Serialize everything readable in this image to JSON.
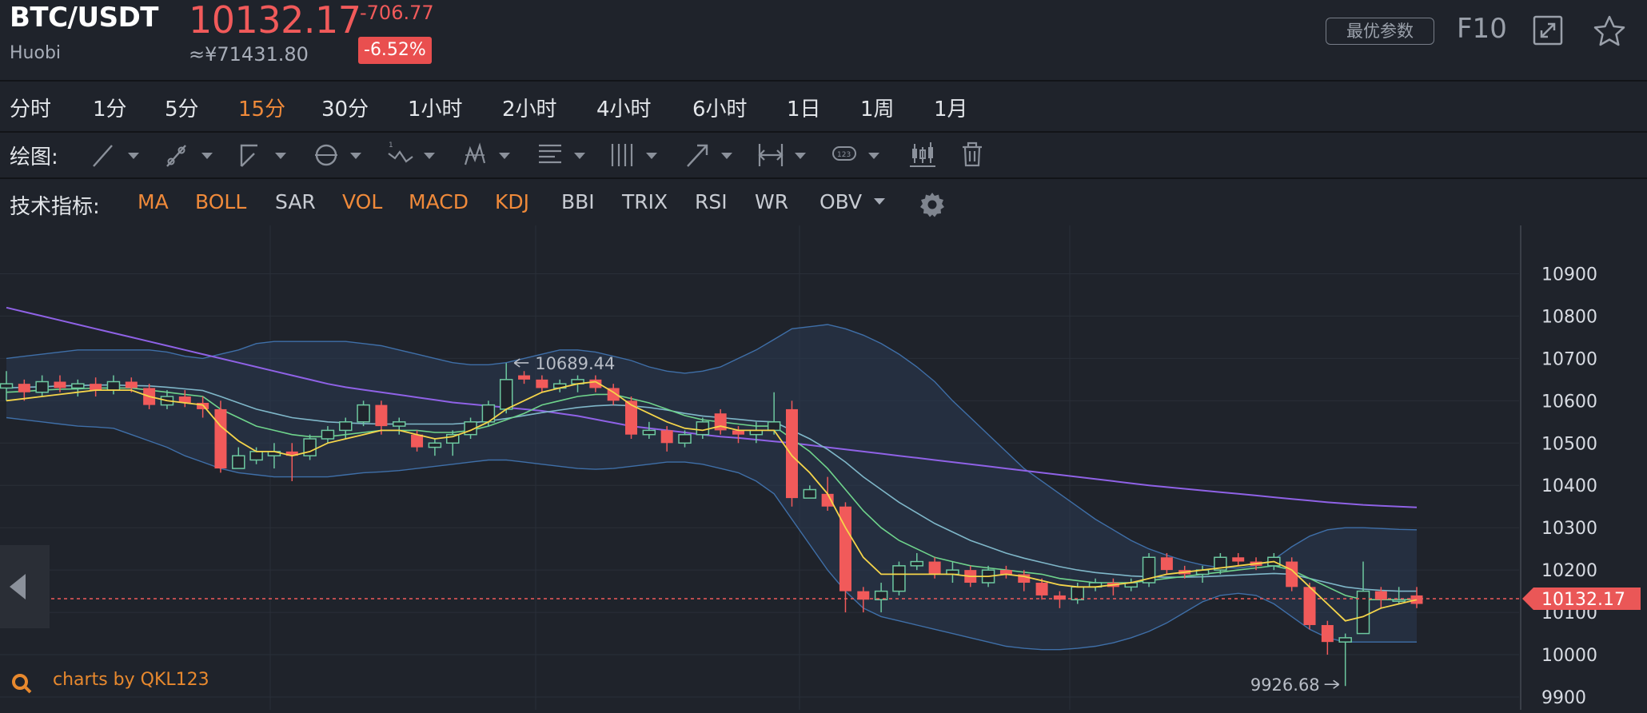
{
  "header": {
    "pair": "BTC/USDT",
    "exchange": "Huobi",
    "price": "10132.17",
    "price_cny": "≈¥71431.80",
    "change": "-706.77",
    "change_pct": "-6.52%",
    "best_params_label": "最优参数",
    "f10_label": "F10",
    "icons": [
      "expand-icon",
      "star-icon"
    ]
  },
  "timeframes": [
    {
      "label": "分时",
      "active": false
    },
    {
      "label": "1分",
      "active": false
    },
    {
      "label": "5分",
      "active": false
    },
    {
      "label": "15分",
      "active": true
    },
    {
      "label": "30分",
      "active": false
    },
    {
      "label": "1小时",
      "active": false
    },
    {
      "label": "2小时",
      "active": false
    },
    {
      "label": "4小时",
      "active": false
    },
    {
      "label": "6小时",
      "active": false
    },
    {
      "label": "1日",
      "active": false
    },
    {
      "label": "1周",
      "active": false
    },
    {
      "label": "1月",
      "active": false
    }
  ],
  "drawing": {
    "label": "绘图:",
    "tools": [
      "line-tool-icon",
      "segment-tool-icon",
      "angle-tool-icon",
      "circle-tool-icon",
      "wave-tool-icon",
      "pattern-tool-icon",
      "fibonacci-tool-icon",
      "gann-tool-icon",
      "arrow-tool-icon",
      "measure-tool-icon",
      "annotation-tool-icon",
      "candle-style-icon",
      "trash-icon"
    ]
  },
  "indicators": {
    "label": "技术指标:",
    "items": [
      {
        "label": "MA",
        "active": true
      },
      {
        "label": "BOLL",
        "active": true
      },
      {
        "label": "SAR",
        "active": false
      },
      {
        "label": "VOL",
        "active": true
      },
      {
        "label": "MACD",
        "active": true
      },
      {
        "label": "KDJ",
        "active": true
      },
      {
        "label": "BBI",
        "active": false
      },
      {
        "label": "TRIX",
        "active": false
      },
      {
        "label": "RSI",
        "active": false
      },
      {
        "label": "WR",
        "active": false
      },
      {
        "label": "OBV",
        "active": false
      }
    ],
    "settings_icon": "gear-icon"
  },
  "colors": {
    "up": "#6dc8a0",
    "down": "#f15a5a",
    "accent": "#f08a3a",
    "ma_fast": "#f5d54a",
    "ma_mid": "#6fd48c",
    "ma_slow": "#7fb7c9",
    "ma_long": "#8f62e6",
    "boll_band": "#3f6fa8"
  },
  "watermark": "charts by QKL123",
  "chart_data": {
    "type": "candlestick",
    "ylim": [
      9900,
      10950
    ],
    "yticks": [
      9900,
      10000,
      10100,
      10200,
      10300,
      10400,
      10500,
      10600,
      10700,
      10800,
      10900
    ],
    "last_price": 10132.17,
    "last_price_label": "10132.17",
    "high_label": "10689.44",
    "low_label": "9926.68",
    "grid": true,
    "candles": [
      [
        10630,
        10640,
        10670,
        10600
      ],
      [
        10640,
        10620,
        10650,
        10600
      ],
      [
        10620,
        10645,
        10660,
        10610
      ],
      [
        10645,
        10630,
        10660,
        10620
      ],
      [
        10630,
        10640,
        10650,
        10610
      ],
      [
        10640,
        10625,
        10655,
        10610
      ],
      [
        10625,
        10645,
        10660,
        10615
      ],
      [
        10645,
        10630,
        10655,
        10620
      ],
      [
        10630,
        10590,
        10640,
        10580
      ],
      [
        10590,
        10610,
        10625,
        10580
      ],
      [
        10610,
        10595,
        10625,
        10585
      ],
      [
        10595,
        10580,
        10610,
        10560
      ],
      [
        10580,
        10440,
        10600,
        10430
      ],
      [
        10440,
        10470,
        10490,
        10440
      ],
      [
        10460,
        10480,
        10490,
        10450
      ],
      [
        10470,
        10480,
        10500,
        10440
      ],
      [
        10480,
        10470,
        10500,
        10410
      ],
      [
        10470,
        10510,
        10520,
        10460
      ],
      [
        10510,
        10530,
        10540,
        10500
      ],
      [
        10530,
        10550,
        10560,
        10510
      ],
      [
        10550,
        10590,
        10600,
        10540
      ],
      [
        10590,
        10540,
        10600,
        10520
      ],
      [
        10540,
        10550,
        10560,
        10520
      ],
      [
        10520,
        10490,
        10530,
        10480
      ],
      [
        10490,
        10500,
        10510,
        10470
      ],
      [
        10500,
        10520,
        10530,
        10470
      ],
      [
        10520,
        10550,
        10560,
        10510
      ],
      [
        10550,
        10590,
        10600,
        10540
      ],
      [
        10580,
        10650,
        10689,
        10570
      ],
      [
        10660,
        10650,
        10670,
        10640
      ],
      [
        10650,
        10630,
        10660,
        10620
      ],
      [
        10630,
        10640,
        10650,
        10620
      ],
      [
        10640,
        10650,
        10660,
        10620
      ],
      [
        10650,
        10630,
        10660,
        10620
      ],
      [
        10630,
        10600,
        10640,
        10590
      ],
      [
        10600,
        10520,
        10610,
        10510
      ],
      [
        10520,
        10530,
        10550,
        10510
      ],
      [
        10530,
        10500,
        10540,
        10480
      ],
      [
        10500,
        10520,
        10530,
        10490
      ],
      [
        10520,
        10550,
        10560,
        10510
      ],
      [
        10570,
        10530,
        10580,
        10520
      ],
      [
        10530,
        10520,
        10540,
        10500
      ],
      [
        10520,
        10530,
        10550,
        10500
      ],
      [
        10530,
        10550,
        10620,
        10520
      ],
      [
        10580,
        10370,
        10600,
        10350
      ],
      [
        10370,
        10390,
        10400,
        10370
      ],
      [
        10380,
        10350,
        10420,
        10340
      ],
      [
        10350,
        10150,
        10360,
        10100
      ],
      [
        10150,
        10130,
        10160,
        10100
      ],
      [
        10130,
        10150,
        10170,
        10100
      ],
      [
        10150,
        10210,
        10220,
        10140
      ],
      [
        10210,
        10220,
        10240,
        10200
      ],
      [
        10220,
        10190,
        10230,
        10180
      ],
      [
        10190,
        10200,
        10220,
        10170
      ],
      [
        10200,
        10170,
        10210,
        10160
      ],
      [
        10170,
        10200,
        10210,
        10160
      ],
      [
        10200,
        10190,
        10210,
        10180
      ],
      [
        10190,
        10170,
        10200,
        10150
      ],
      [
        10170,
        10140,
        10180,
        10130
      ],
      [
        10140,
        10130,
        10150,
        10110
      ],
      [
        10130,
        10160,
        10170,
        10120
      ],
      [
        10160,
        10170,
        10180,
        10150
      ],
      [
        10170,
        10160,
        10180,
        10140
      ],
      [
        10160,
        10170,
        10180,
        10150
      ],
      [
        10170,
        10230,
        10240,
        10160
      ],
      [
        10230,
        10200,
        10240,
        10190
      ],
      [
        10200,
        10190,
        10210,
        10180
      ],
      [
        10190,
        10200,
        10210,
        10170
      ],
      [
        10200,
        10230,
        10240,
        10190
      ],
      [
        10230,
        10220,
        10240,
        10210
      ],
      [
        10220,
        10210,
        10230,
        10200
      ],
      [
        10210,
        10230,
        10240,
        10200
      ],
      [
        10220,
        10160,
        10230,
        10150
      ],
      [
        10160,
        10070,
        10170,
        10060
      ],
      [
        10070,
        10030,
        10080,
        10000
      ],
      [
        10030,
        10040,
        10050,
        9926
      ],
      [
        10050,
        10150,
        10220,
        10050
      ],
      [
        10150,
        10130,
        10160,
        10110
      ],
      [
        10130,
        10130,
        10160,
        10120
      ],
      [
        10140,
        10120,
        10160,
        10110
      ]
    ],
    "series": [
      {
        "values": [
          10600,
          10605,
          10610,
          10615,
          10620,
          10625,
          10625,
          10625,
          10610,
          10600,
          10595,
          10590,
          10540,
          10505,
          10480,
          10480,
          10470,
          10480,
          10500,
          10510,
          10520,
          10530,
          10530,
          10520,
          10510,
          10515,
          10530,
          10550,
          10580,
          10600,
          10620,
          10630,
          10640,
          10645,
          10620,
          10590,
          10570,
          10550,
          10535,
          10530,
          10540,
          10530,
          10530,
          10530,
          10470,
          10430,
          10380,
          10300,
          10230,
          10190,
          10190,
          10190,
          10190,
          10190,
          10185,
          10185,
          10190,
          10185,
          10175,
          10165,
          10160,
          10160,
          10165,
          10170,
          10180,
          10190,
          10195,
          10200,
          10205,
          10210,
          10215,
          10220,
          10200,
          10160,
          10120,
          10080,
          10090,
          10110,
          10120,
          10130
        ]
      },
      {
        "values": [
          10620,
          10622,
          10625,
          10627,
          10628,
          10630,
          10630,
          10630,
          10625,
          10620,
          10615,
          10610,
          10580,
          10560,
          10540,
          10530,
          10520,
          10515,
          10515,
          10520,
          10525,
          10530,
          10530,
          10530,
          10525,
          10525,
          10530,
          10540,
          10555,
          10570,
          10590,
          10600,
          10610,
          10615,
          10615,
          10605,
          10595,
          10580,
          10565,
          10555,
          10550,
          10545,
          10540,
          10540,
          10510,
          10480,
          10440,
          10390,
          10340,
          10300,
          10270,
          10250,
          10230,
          10220,
          10210,
          10205,
          10200,
          10195,
          10190,
          10180,
          10175,
          10170,
          10170,
          10170,
          10175,
          10180,
          10185,
          10190,
          10195,
          10200,
          10205,
          10210,
          10200,
          10180,
          10160,
          10140,
          10130,
          10130,
          10130,
          10130
        ]
      },
      {
        "values": [
          10630,
          10632,
          10633,
          10635,
          10636,
          10637,
          10637,
          10636,
          10635,
          10632,
          10628,
          10624,
          10610,
          10595,
          10580,
          10570,
          10560,
          10555,
          10550,
          10548,
          10546,
          10545,
          10545,
          10545,
          10545,
          10545,
          10548,
          10552,
          10558,
          10565,
          10572,
          10578,
          10584,
          10588,
          10590,
          10588,
          10584,
          10578,
          10570,
          10564,
          10560,
          10556,
          10552,
          10550,
          10530,
          10510,
          10485,
          10455,
          10420,
          10390,
          10360,
          10335,
          10310,
          10290,
          10270,
          10255,
          10240,
          10228,
          10218,
          10208,
          10200,
          10194,
          10190,
          10186,
          10184,
          10183,
          10183,
          10184,
          10186,
          10188,
          10190,
          10192,
          10190,
          10180,
          10170,
          10160,
          10155,
          10152,
          10150,
          10150
        ]
      },
      {
        "values": [
          10820,
          10810,
          10800,
          10790,
          10780,
          10770,
          10760,
          10750,
          10740,
          10730,
          10720,
          10710,
          10700,
          10690,
          10680,
          10670,
          10660,
          10650,
          10640,
          10632,
          10626,
          10620,
          10614,
          10608,
          10602,
          10596,
          10592,
          10588,
          10584,
          10580,
          10576,
          10570,
          10564,
          10556,
          10548,
          10540,
          10535,
          10530,
          10525,
          10520,
          10515,
          10512,
          10508,
          10504,
          10500,
          10495,
          10490,
          10485,
          10480,
          10475,
          10470,
          10465,
          10460,
          10455,
          10450,
          10445,
          10440,
          10435,
          10430,
          10425,
          10420,
          10415,
          10410,
          10405,
          10400,
          10396,
          10392,
          10388,
          10384,
          10380,
          10376,
          10372,
          10368,
          10364,
          10360,
          10357,
          10354,
          10352,
          10350,
          10348
        ]
      }
    ],
    "boll_upper": [
      10700,
      10705,
      10710,
      10715,
      10720,
      10720,
      10720,
      10720,
      10720,
      10715,
      10705,
      10700,
      10710,
      10720,
      10735,
      10740,
      10740,
      10740,
      10740,
      10740,
      10735,
      10730,
      10720,
      10710,
      10700,
      10690,
      10685,
      10685,
      10690,
      10700,
      10710,
      10720,
      10720,
      10715,
      10705,
      10695,
      10680,
      10670,
      10665,
      10670,
      10680,
      10700,
      10720,
      10745,
      10770,
      10775,
      10780,
      10770,
      10755,
      10735,
      10710,
      10680,
      10645,
      10600,
      10560,
      10520,
      10480,
      10440,
      10410,
      10380,
      10350,
      10320,
      10295,
      10270,
      10250,
      10235,
      10222,
      10212,
      10206,
      10205,
      10210,
      10225,
      10255,
      10280,
      10295,
      10300,
      10300,
      10298,
      10296,
      10295
    ],
    "boll_lower": [
      10560,
      10555,
      10550,
      10545,
      10540,
      10538,
      10535,
      10520,
      10505,
      10490,
      10470,
      10455,
      10440,
      10430,
      10425,
      10420,
      10420,
      10420,
      10420,
      10425,
      10430,
      10432,
      10435,
      10440,
      10445,
      10450,
      10455,
      10460,
      10460,
      10455,
      10450,
      10445,
      10440,
      10438,
      10440,
      10445,
      10450,
      10455,
      10455,
      10450,
      10440,
      10430,
      10410,
      10380,
      10320,
      10260,
      10200,
      10150,
      10110,
      10090,
      10080,
      10070,
      10060,
      10050,
      10040,
      10030,
      10020,
      10015,
      10012,
      10012,
      10015,
      10020,
      10028,
      10040,
      10055,
      10075,
      10100,
      10125,
      10140,
      10145,
      10140,
      10120,
      10090,
      10060,
      10040,
      10030,
      10030,
      10030,
      10030,
      10030
    ]
  }
}
